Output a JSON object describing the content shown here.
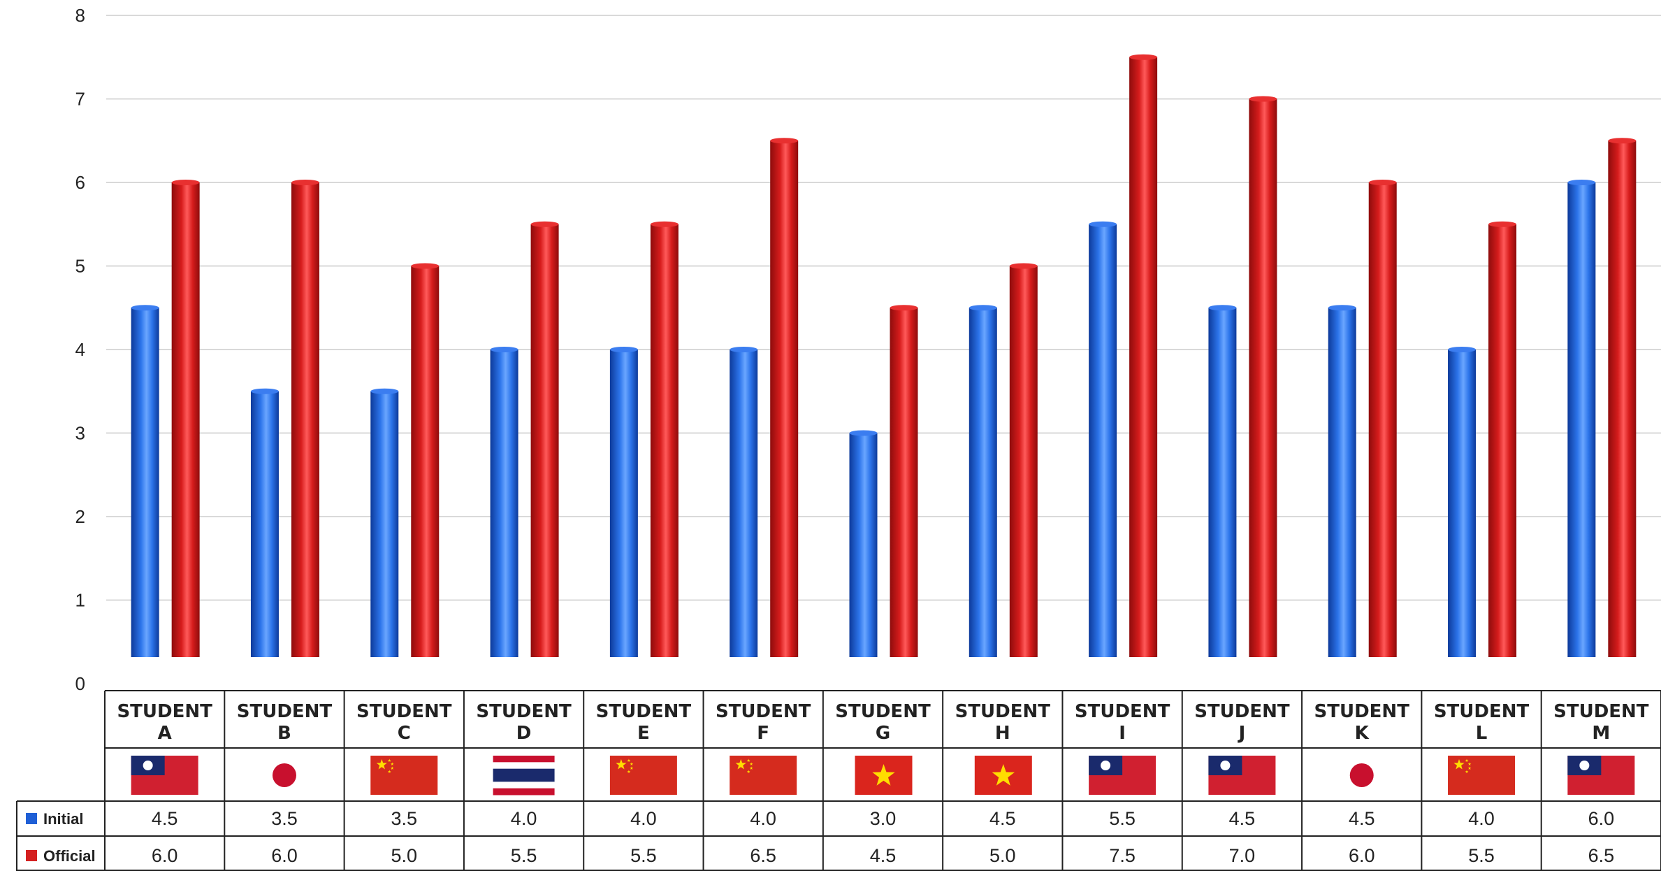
{
  "chart_data": {
    "type": "bar",
    "categories": [
      "STUDENT A",
      "STUDENT B",
      "STUDENT C",
      "STUDENT D",
      "STUDENT E",
      "STUDENT F",
      "STUDENT G",
      "STUDENT H",
      "STUDENT I",
      "STUDENT J",
      "STUDENT K",
      "STUDENT L",
      "STUDENT M"
    ],
    "flags": [
      "taiwan",
      "japan",
      "china",
      "thailand",
      "china",
      "china",
      "vietnam",
      "vietnam",
      "taiwan",
      "taiwan",
      "japan",
      "china",
      "taiwan"
    ],
    "series": [
      {
        "name": "Initial",
        "color": "#1f5fd6",
        "values": [
          4.5,
          3.5,
          3.5,
          4.0,
          4.0,
          4.0,
          3.0,
          4.5,
          5.5,
          4.5,
          4.5,
          4.0,
          6.0
        ],
        "labels": [
          "4.5",
          "3.5",
          "3.5",
          "4.0",
          "4.0",
          "4.0",
          "3.0",
          "4.5",
          "5.5",
          "4.5",
          "4.5",
          "4.0",
          "6.0"
        ]
      },
      {
        "name": "Official",
        "color": "#d42020",
        "values": [
          6.0,
          6.0,
          5.0,
          5.5,
          5.5,
          6.5,
          4.5,
          5.0,
          7.5,
          7.0,
          6.0,
          5.5,
          6.5
        ],
        "labels": [
          "6.0",
          "6.0",
          "5.0",
          "5.5",
          "5.5",
          "6.5",
          "4.5",
          "5.0",
          "7.5",
          "7.0",
          "6.0",
          "5.5",
          "6.5"
        ]
      }
    ],
    "y_ticks": [
      "0",
      "1",
      "2",
      "3",
      "4",
      "5",
      "6",
      "7",
      "8"
    ],
    "ylim": [
      0,
      8
    ],
    "grid": true,
    "legend": "data table"
  }
}
